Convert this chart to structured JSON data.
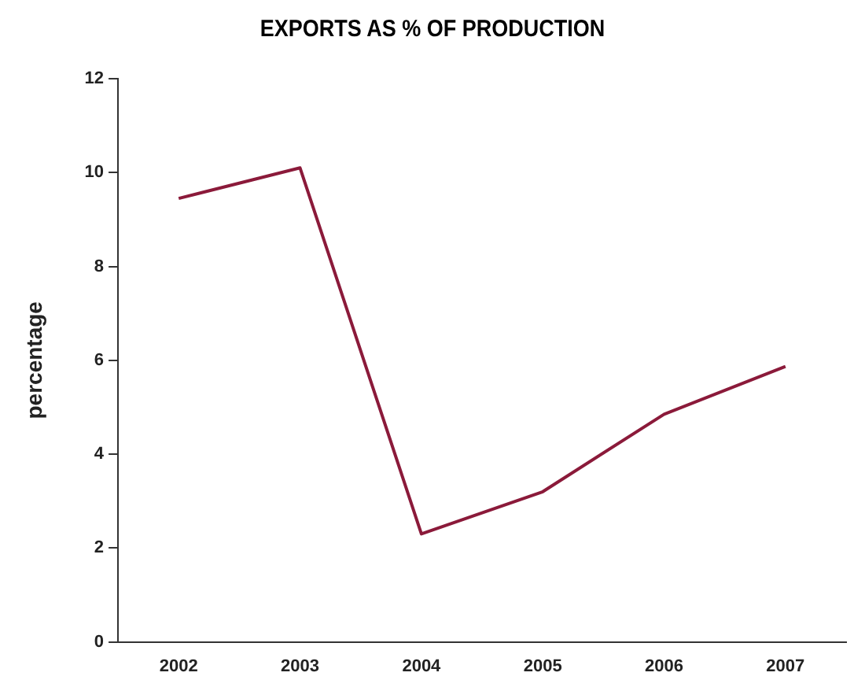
{
  "chart_data": {
    "type": "line",
    "title": "EXPORTS AS % OF PRODUCTION",
    "ylabel": "percentage",
    "categories": [
      "2002",
      "2003",
      "2004",
      "2005",
      "2006",
      "2007"
    ],
    "series": [
      {
        "color": "#8b1a3a",
        "values": [
          9.45,
          10.1,
          2.3,
          3.2,
          4.85,
          5.87
        ]
      }
    ],
    "ylim": [
      0,
      12
    ],
    "yticks": [
      0,
      2,
      4,
      6,
      8,
      10,
      12
    ],
    "grid": false,
    "legend": false,
    "marker": "none",
    "line_style": "solid"
  }
}
